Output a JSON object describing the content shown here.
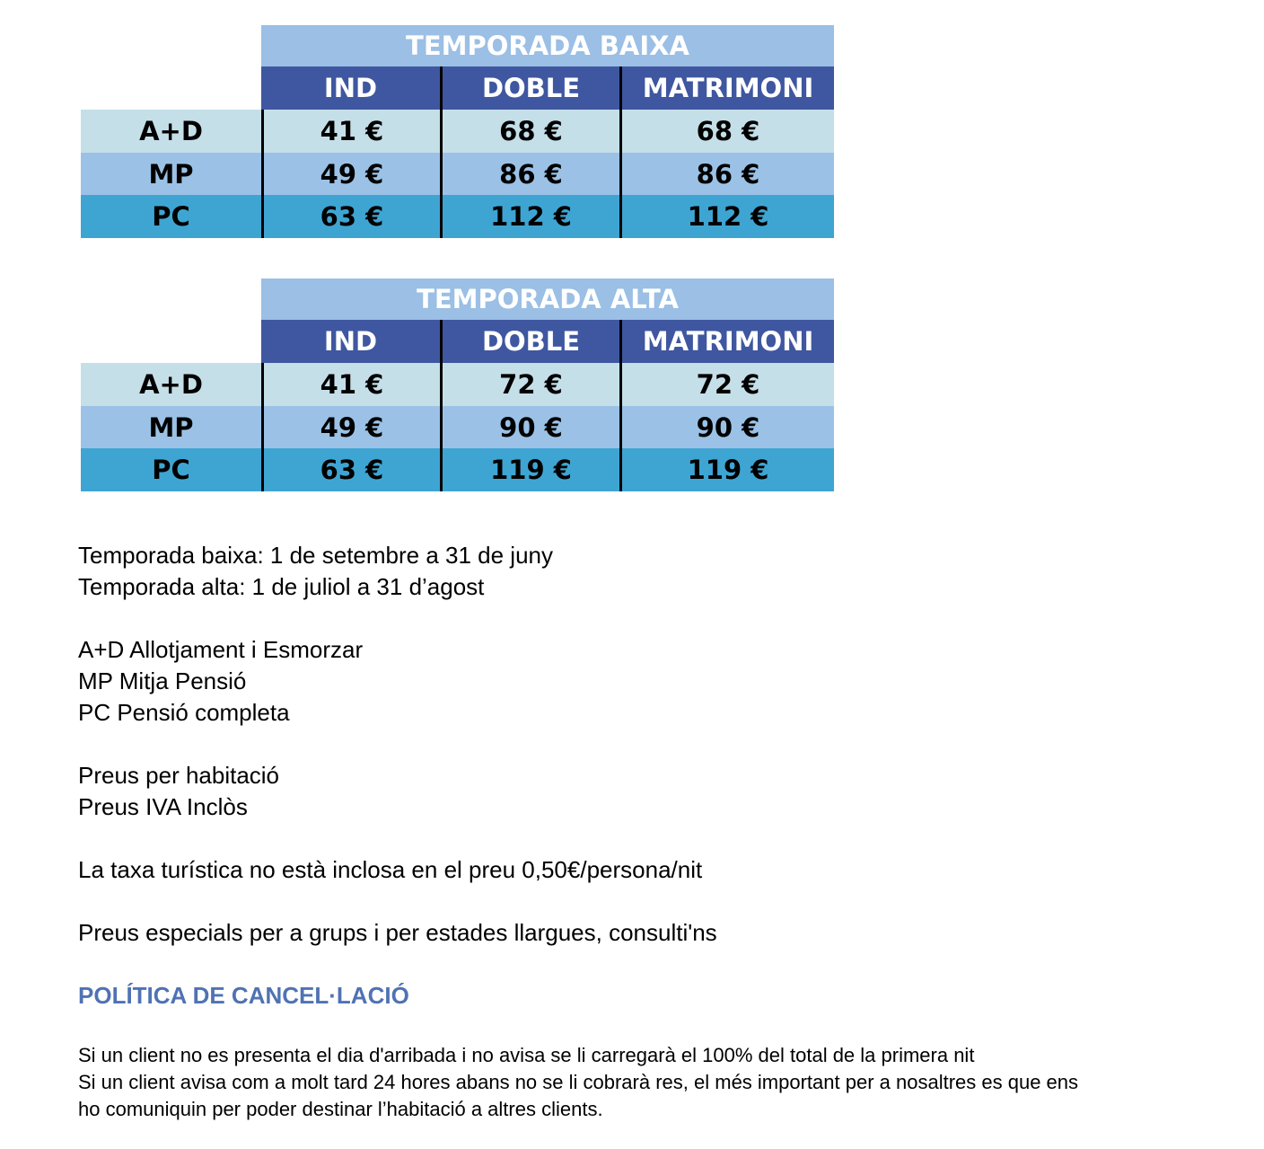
{
  "tables": [
    {
      "title": "TEMPORADA BAIXA",
      "columns": [
        "IND",
        "DOBLE",
        "MATRIMONI"
      ],
      "rows": [
        {
          "label": "A+D",
          "values": [
            "41 €",
            "68 €",
            "68 €"
          ]
        },
        {
          "label": "MP",
          "values": [
            "49 €",
            "86 €",
            "86 €"
          ]
        },
        {
          "label": "PC",
          "values": [
            "63 €",
            "112 €",
            "112 €"
          ]
        }
      ]
    },
    {
      "title": "TEMPORADA ALTA",
      "columns": [
        "IND",
        "DOBLE",
        "MATRIMONI"
      ],
      "rows": [
        {
          "label": "A+D",
          "values": [
            "41 €",
            "72 €",
            "72 €"
          ]
        },
        {
          "label": "MP",
          "values": [
            "49 €",
            "90 €",
            "90 €"
          ]
        },
        {
          "label": "PC",
          "values": [
            "63 €",
            "119 €",
            "119 €"
          ]
        }
      ]
    }
  ],
  "notes": [
    [
      "Temporada baixa: 1 de setembre a 31 de juny",
      "Temporada alta: 1 de juliol a 31 d’agost"
    ],
    [
      "A+D Allotjament i Esmorzar",
      "MP Mitja Pensió",
      "PC Pensió completa"
    ],
    [
      "Preus per habitació",
      "Preus IVA Inclòs"
    ],
    [
      "La taxa turística no està inclosa en el preu 0,50€/persona/nit"
    ],
    [
      "Preus especials per a grups i per estades llargues, consulti'ns"
    ]
  ],
  "policy": {
    "heading": "POLÍTICA DE CANCEL·LACIÓ",
    "lines": [
      "Si un client no es presenta el dia d'arribada i no avisa se li carregarà el 100% del total de la primera nit",
      "Si un client avisa com a molt tard 24 hores abans no se li cobrarà res, el més important per a nosaltres es que ens",
      "ho comuniquin per poder destinar l’habitació a altres clients."
    ]
  }
}
